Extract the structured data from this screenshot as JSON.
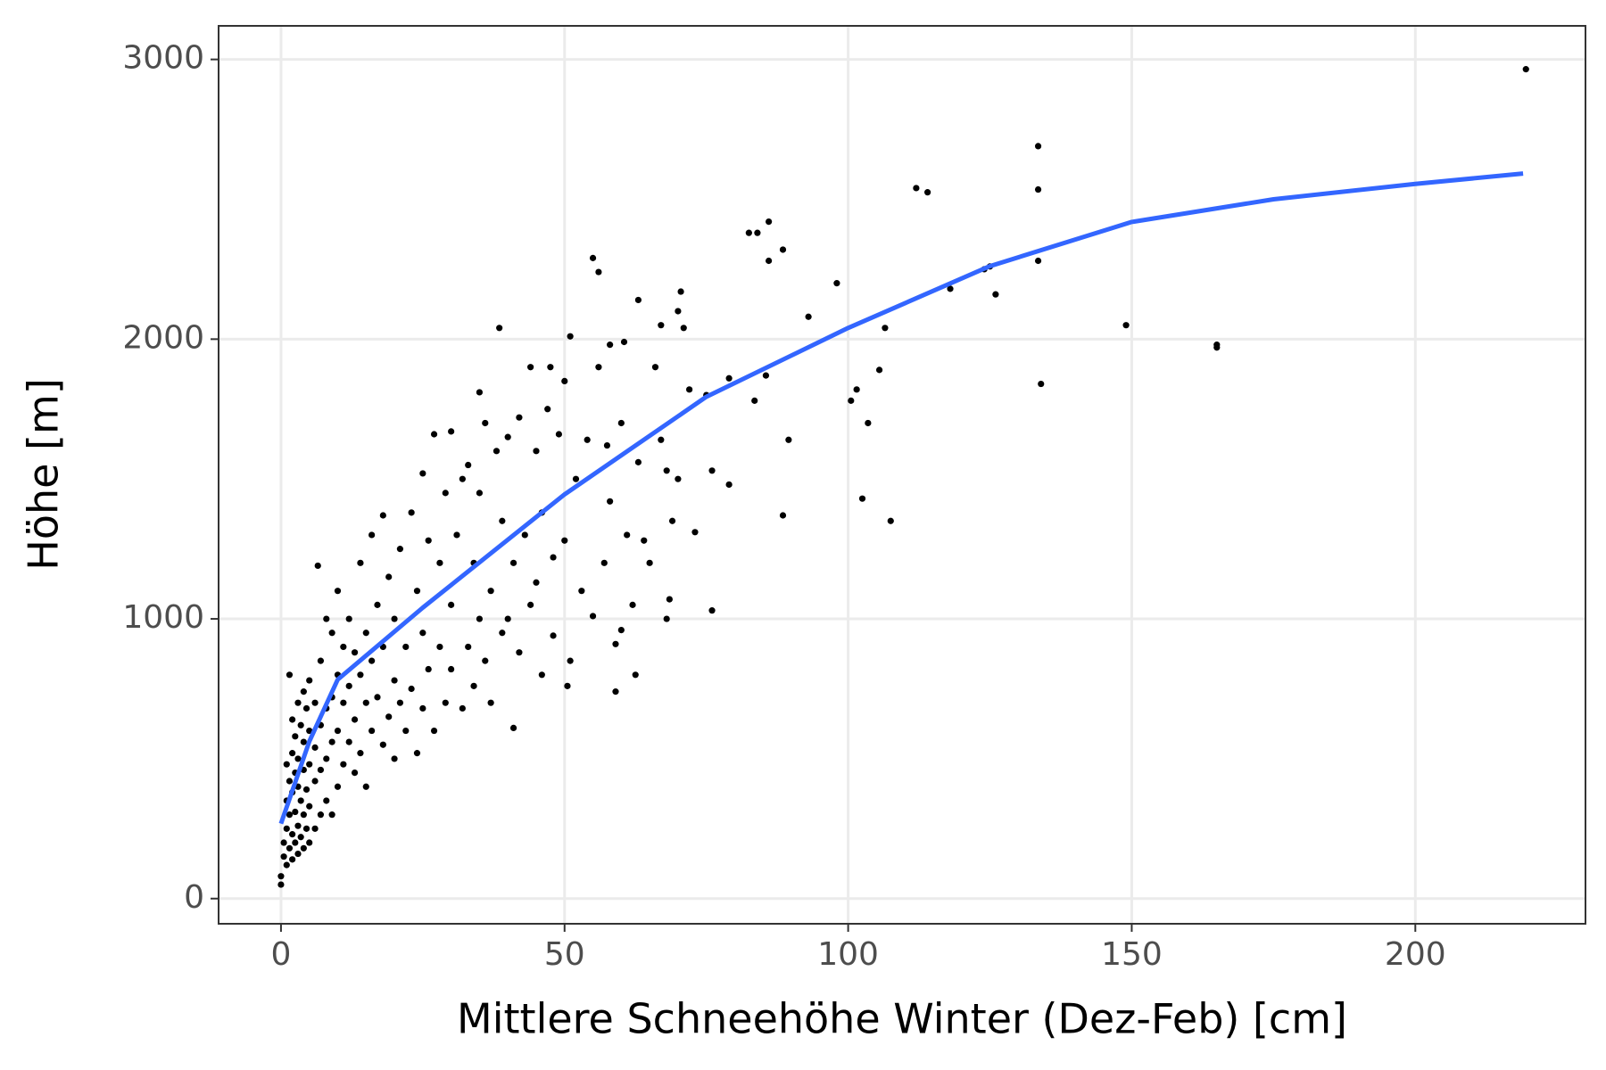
{
  "chart_data": {
    "type": "scatter",
    "x_label": "Mittlere Schneehöhe Winter (Dez-Feb) [cm]",
    "y_label": "Höhe [m]",
    "xlim": [
      -11,
      230
    ],
    "ylim": [
      -90,
      3120
    ],
    "xticks": [
      0,
      50,
      100,
      150,
      200
    ],
    "yticks": [
      0,
      1000,
      2000,
      3000
    ],
    "grid": true,
    "series": [
      {
        "type": "scatter",
        "color": "#000000",
        "x": [
          0,
          0,
          0.5,
          0.5,
          1,
          1,
          1,
          1,
          1.5,
          1.5,
          1.5,
          2,
          2,
          2,
          2,
          2,
          2.5,
          2.5,
          2.5,
          2.5,
          3,
          3,
          3,
          3,
          3,
          3.5,
          3.5,
          3.5,
          4,
          4,
          4,
          4,
          4,
          4.5,
          4.5,
          4.5,
          5,
          5,
          5,
          5,
          5,
          1.5,
          6,
          6,
          6,
          6,
          6.5,
          7,
          7,
          7,
          7,
          8,
          8,
          8,
          8,
          9,
          9,
          9,
          9,
          10,
          10,
          10,
          10,
          11,
          11,
          11,
          12,
          12,
          12,
          13,
          13,
          13,
          14,
          14,
          14,
          15,
          15,
          15,
          16,
          16,
          16,
          17,
          17,
          18,
          18,
          18,
          19,
          19,
          20,
          20,
          20,
          21,
          21,
          22,
          22,
          23,
          23,
          24,
          24,
          25,
          25,
          25,
          26,
          26,
          27,
          27,
          28,
          28,
          29,
          29,
          30,
          30,
          30,
          31,
          32,
          32,
          33,
          33,
          34,
          34,
          35,
          35,
          35,
          36,
          36,
          37,
          37,
          38,
          38.5,
          39,
          39,
          40,
          40,
          41,
          41,
          42,
          42,
          43,
          44,
          44,
          45,
          45,
          46,
          46,
          47,
          47.5,
          48,
          48,
          49,
          50,
          50,
          50.5,
          51,
          51,
          52,
          53,
          54,
          55,
          55,
          56,
          56,
          57,
          57.5,
          58,
          58,
          59,
          59,
          60,
          60,
          60.5,
          61,
          62,
          62.5,
          63,
          63,
          64,
          65,
          66,
          67,
          67,
          68,
          68,
          68.5,
          69,
          70,
          70,
          70.5,
          71,
          72,
          73,
          75,
          76,
          76,
          79,
          79,
          82.5,
          83.5,
          84,
          85.5,
          86,
          86,
          88.5,
          88.5,
          89.5,
          93,
          98,
          100.5,
          101.5,
          102.5,
          103.5,
          105.5,
          106.5,
          107.5,
          112,
          114,
          118,
          124,
          125,
          126,
          133.5,
          133.5,
          133.5,
          134,
          149,
          165,
          165,
          219.5
        ],
        "values": [
          50,
          80,
          150,
          200,
          120,
          250,
          350,
          480,
          180,
          300,
          420,
          140,
          230,
          380,
          520,
          640,
          200,
          310,
          450,
          580,
          160,
          260,
          400,
          500,
          700,
          220,
          350,
          620,
          180,
          300,
          460,
          560,
          740,
          250,
          390,
          680,
          200,
          330,
          480,
          600,
          780,
          800,
          250,
          420,
          540,
          700,
          1190,
          300,
          460,
          620,
          850,
          350,
          500,
          680,
          1000,
          300,
          560,
          720,
          950,
          400,
          600,
          800,
          1100,
          480,
          700,
          900,
          560,
          760,
          1000,
          450,
          640,
          880,
          520,
          800,
          1200,
          400,
          700,
          950,
          600,
          850,
          1300,
          720,
          1050,
          550,
          900,
          1370,
          650,
          1150,
          500,
          780,
          1000,
          700,
          1250,
          600,
          900,
          1380,
          750,
          520,
          1100,
          680,
          950,
          1520,
          1280,
          820,
          600,
          1660,
          900,
          1200,
          700,
          1450,
          1050,
          1670,
          820,
          1300,
          680,
          1500,
          900,
          1550,
          1200,
          760,
          1810,
          1000,
          1450,
          850,
          1700,
          1100,
          700,
          1600,
          2040,
          950,
          1350,
          1000,
          1650,
          610,
          1200,
          1720,
          880,
          1300,
          1900,
          1050,
          1130,
          1600,
          800,
          1380,
          1750,
          1900,
          1220,
          940,
          1660,
          1280,
          1850,
          760,
          850,
          2010,
          1500,
          1100,
          1640,
          1010,
          2290,
          2240,
          1900,
          1200,
          1620,
          1980,
          1420,
          740,
          910,
          960,
          1700,
          1990,
          1300,
          1050,
          800,
          2140,
          1560,
          1280,
          1200,
          1900,
          2050,
          1640,
          1000,
          1530,
          1070,
          1350,
          2100,
          1500,
          2170,
          2040,
          1820,
          1310,
          1800,
          1030,
          1530,
          1480,
          1860,
          2380,
          1780,
          2380,
          1870,
          2420,
          2280,
          1370,
          2320,
          1640,
          2080,
          2200,
          1780,
          1820,
          1430,
          1700,
          1890,
          2040,
          1350,
          2540,
          2525,
          2180,
          2250,
          2260,
          2160,
          2535,
          2690,
          2280,
          1840,
          2050,
          1980,
          1970,
          2965
        ]
      },
      {
        "type": "line",
        "color": "#3366FF",
        "x": [
          0,
          5,
          10,
          25,
          50,
          75,
          100,
          125,
          150,
          175,
          200,
          219
        ],
        "values": [
          268,
          562,
          783,
          1040,
          1445,
          1794,
          2040,
          2261,
          2419,
          2500,
          2555,
          2592
        ]
      }
    ]
  }
}
